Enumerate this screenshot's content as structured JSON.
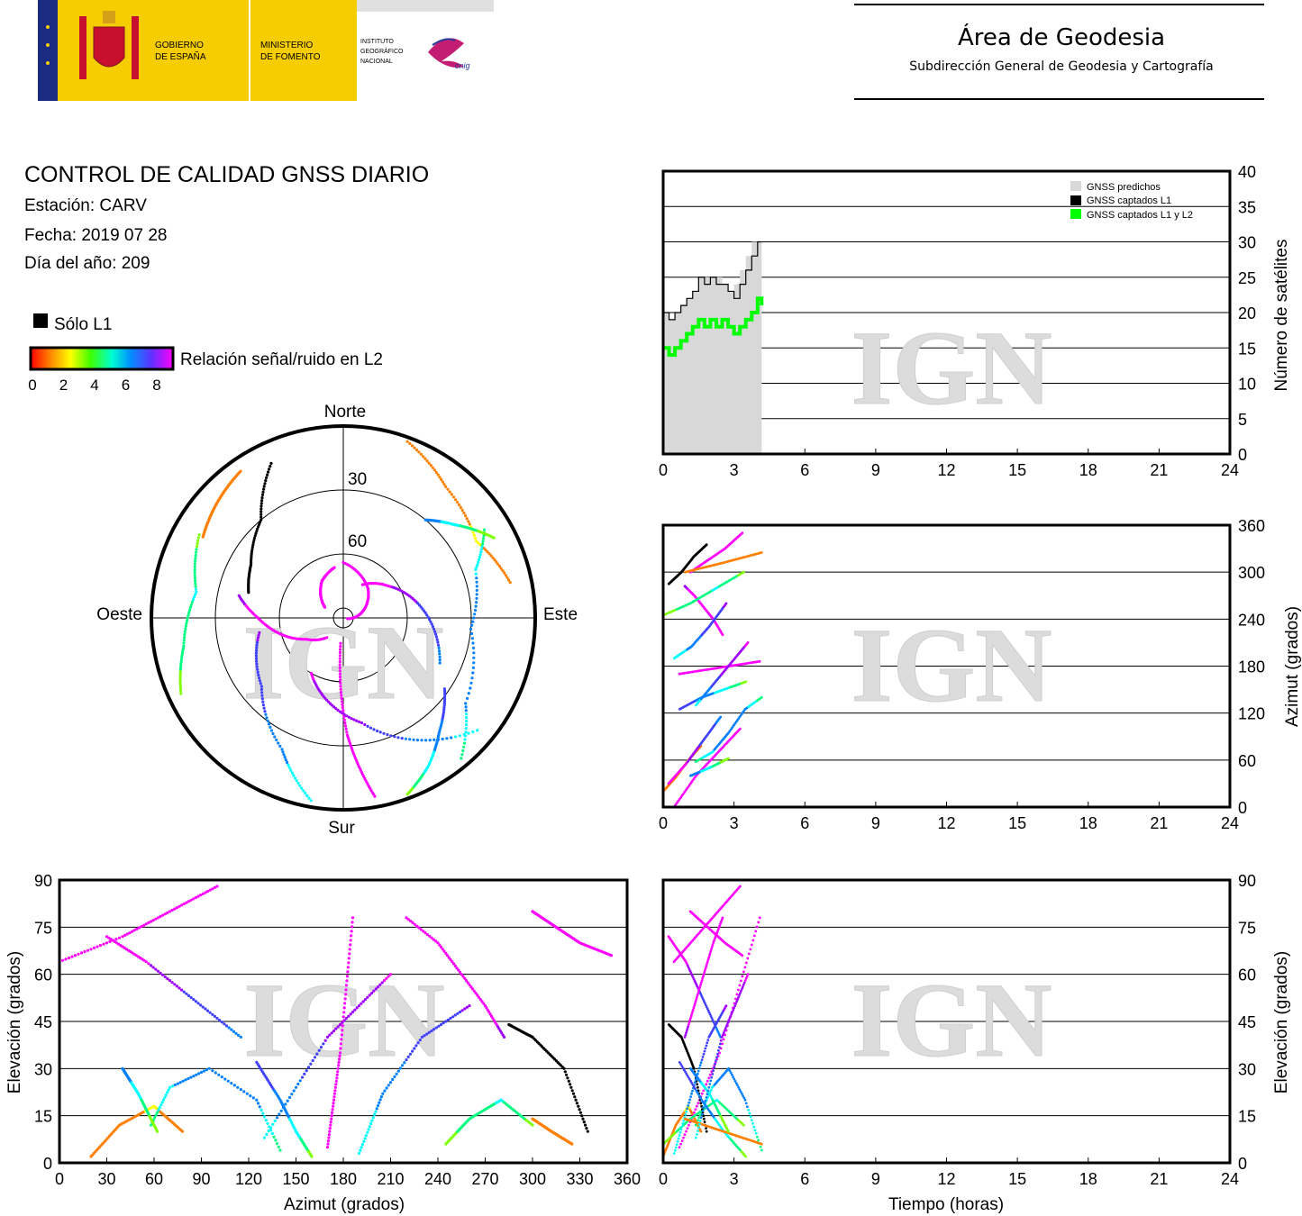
{
  "header": {
    "gov_line1": "GOBIERNO",
    "gov_line2": "DE ESPAÑA",
    "min_line1": "MINISTERIO",
    "min_line2": "DE FOMENTO",
    "ign_line1": "INSTITUTO",
    "ign_line2": "GEOGRÁFICO",
    "ign_line3": "NACIONAL",
    "cnig": "cnig",
    "area": "Área de Geodesia",
    "subdir": "Subdirección General de Geodesia y Cartografía"
  },
  "info": {
    "title": "CONTROL DE CALIDAD GNSS DIARIO",
    "station": "Estación: CARV",
    "date": "Fecha: 2019 07 28",
    "doy": "Día del año: 209"
  },
  "legend": {
    "only_l1": "Sólo L1",
    "snr_label": "Relación señal/ruido en L2",
    "snr_ticks": [
      "0",
      "2",
      "4",
      "6",
      "8"
    ]
  },
  "watermark": "IGN",
  "colors": {
    "predicted": "#d8d8d8",
    "captured_l1": "#000000",
    "captured_l1_l2": "#00ff00",
    "snr_scale": [
      "#ff0000",
      "#ff8000",
      "#ffff00",
      "#80ff00",
      "#00ff80",
      "#00ffff",
      "#0080ff",
      "#4040ff",
      "#a000ff",
      "#ff00ff"
    ]
  },
  "chart_data": [
    {
      "id": "skyplot",
      "type": "scatter",
      "title": "",
      "directions": {
        "north": "Norte",
        "south": "Sur",
        "east": "Este",
        "west": "Oeste"
      },
      "elevation_rings": [
        "30",
        "60"
      ],
      "tracks": [
        {
          "az": [
            20,
            38,
            60,
            78
          ],
          "el": [
            2,
            12,
            18,
            10
          ],
          "snr": [
            0.8,
            1.2,
            1.6,
            0.8
          ]
        },
        {
          "az": [
            30,
            55,
            85,
            115
          ],
          "el": [
            72,
            64,
            52,
            40
          ],
          "snr": [
            9,
            8.6,
            7.2,
            6.2
          ]
        },
        {
          "az": [
            0,
            40,
            70,
            100
          ],
          "el": [
            64,
            72,
            80,
            88
          ],
          "snr": [
            9,
            9,
            9,
            9
          ]
        },
        {
          "az": [
            170,
            178,
            186
          ],
          "el": [
            5,
            35,
            78
          ],
          "snr": [
            9,
            9,
            9
          ]
        },
        {
          "az": [
            282,
            270,
            255,
            240,
            220
          ],
          "el": [
            40,
            50,
            60,
            70,
            78
          ],
          "snr": [
            8.3,
            8.8,
            9,
            9,
            9
          ]
        },
        {
          "az": [
            300,
            315,
            330,
            350
          ],
          "el": [
            80,
            75,
            70,
            66
          ],
          "snr": [
            9,
            9,
            9,
            9
          ]
        },
        {
          "az": [
            58,
            70,
            95,
            125,
            140
          ],
          "el": [
            12,
            24,
            30,
            20,
            4
          ],
          "snr": [
            4,
            5.4,
            6.4,
            5.8,
            4
          ]
        },
        {
          "az": [
            245,
            260,
            280,
            300
          ],
          "el": [
            6,
            14,
            20,
            12
          ],
          "snr": [
            3,
            4,
            4.6,
            3.2
          ]
        },
        {
          "az": [
            285,
            300,
            320,
            335
          ],
          "el": [
            44,
            40,
            30,
            10
          ],
          "snr": [
            -1,
            -1,
            -1,
            -1
          ]
        },
        {
          "az": [
            190,
            205,
            230,
            260
          ],
          "el": [
            3,
            22,
            40,
            50
          ],
          "snr": [
            4.6,
            5.8,
            7,
            7.6
          ]
        },
        {
          "az": [
            125,
            140,
            150,
            160
          ],
          "el": [
            32,
            20,
            10,
            2
          ],
          "snr": [
            7.2,
            6.2,
            5,
            3
          ]
        },
        {
          "az": [
            300,
            312,
            325
          ],
          "el": [
            14,
            10,
            6
          ],
          "snr": [
            1,
            1,
            0.5
          ]
        },
        {
          "az": [
            40,
            50,
            62
          ],
          "el": [
            30,
            22,
            10
          ],
          "snr": [
            6.3,
            4.8,
            2.6
          ]
        },
        {
          "az": [
            130,
            170,
            210
          ],
          "el": [
            8,
            40,
            60
          ],
          "snr": [
            5,
            7.6,
            8.6
          ]
        }
      ]
    },
    {
      "id": "satellites",
      "type": "area",
      "ylabel": "Número de satélites",
      "x_ticks": [
        0,
        3,
        6,
        9,
        12,
        15,
        18,
        21,
        24
      ],
      "y_ticks": [
        0,
        5,
        10,
        15,
        20,
        25,
        30,
        35,
        40
      ],
      "xlim": [
        0,
        24
      ],
      "ylim": [
        0,
        40
      ],
      "legend": {
        "position": "top-right",
        "entries": [
          "GNSS predichos",
          "GNSS captados L1",
          "GNSS captados L1 y L2"
        ]
      },
      "series": [
        {
          "name": "GNSS predichos",
          "x": [
            0,
            0.25,
            0.5,
            0.75,
            1.0,
            1.25,
            1.5,
            1.75,
            2.0,
            2.25,
            2.5,
            2.75,
            3.0,
            3.25,
            3.5,
            3.75,
            4.0,
            4.17
          ],
          "values": [
            20,
            19,
            20,
            21,
            22,
            23,
            25,
            25,
            25,
            25,
            24,
            23,
            24,
            26,
            28,
            30,
            30,
            30
          ]
        },
        {
          "name": "GNSS captados L1",
          "x": [
            0,
            0.25,
            0.5,
            0.75,
            1.0,
            1.25,
            1.5,
            1.75,
            2.0,
            2.25,
            2.5,
            2.75,
            3.0,
            3.25,
            3.5,
            3.75,
            4.0,
            4.17
          ],
          "values": [
            20,
            19,
            20,
            21,
            22,
            23,
            25,
            24,
            25,
            24,
            24,
            23,
            22,
            24,
            26,
            28,
            30,
            30
          ]
        },
        {
          "name": "GNSS captados L1 y L2",
          "x": [
            0,
            0.25,
            0.5,
            0.75,
            1.0,
            1.25,
            1.5,
            1.75,
            2.0,
            2.25,
            2.5,
            2.75,
            3.0,
            3.25,
            3.5,
            3.75,
            4.0,
            4.17
          ],
          "values": [
            15,
            14,
            15,
            16,
            17,
            18,
            19,
            18,
            19,
            18,
            19,
            18,
            17,
            18,
            19,
            20,
            22,
            21
          ]
        }
      ]
    },
    {
      "id": "azimuth",
      "type": "scatter",
      "ylabel": "Azimut (grados)",
      "x_ticks": [
        0,
        3,
        6,
        9,
        12,
        15,
        18,
        21,
        24
      ],
      "y_ticks": [
        0,
        60,
        120,
        180,
        240,
        300,
        360
      ],
      "xlim": [
        0,
        24
      ],
      "ylim": [
        0,
        360
      ]
    },
    {
      "id": "elev_azimuth",
      "type": "scatter",
      "xlabel": "Azimut (grados)",
      "ylabel": "Elevación (grados)",
      "x_ticks": [
        0,
        30,
        60,
        90,
        120,
        150,
        180,
        210,
        240,
        270,
        300,
        330,
        360
      ],
      "y_ticks": [
        0,
        15,
        30,
        45,
        60,
        75,
        90
      ],
      "xlim": [
        0,
        360
      ],
      "ylim": [
        0,
        90
      ]
    },
    {
      "id": "elev_time",
      "type": "scatter",
      "xlabel": "Tiempo (horas)",
      "ylabel": "Elevación (grados)",
      "x_ticks": [
        0,
        3,
        6,
        9,
        12,
        15,
        18,
        21,
        24
      ],
      "y_ticks": [
        0,
        15,
        30,
        45,
        60,
        75,
        90
      ],
      "xlim": [
        0,
        24
      ],
      "ylim": [
        0,
        90
      ]
    }
  ]
}
